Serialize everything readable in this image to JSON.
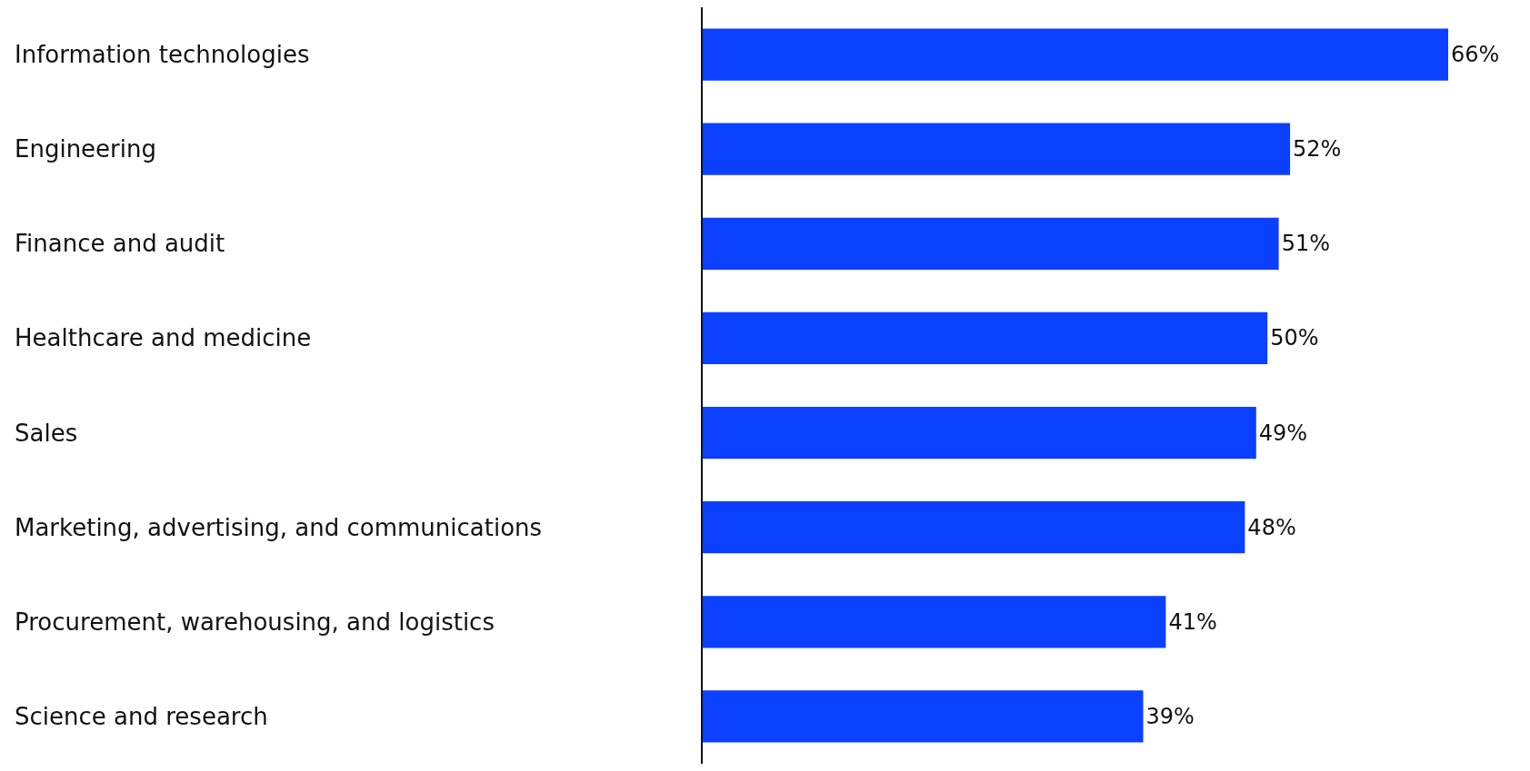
{
  "chart_data": {
    "type": "bar",
    "orientation": "horizontal",
    "categories": [
      "Information technologies",
      "Engineering",
      "Finance and audit",
      "Healthcare and medicine",
      "Sales",
      "Marketing, advertising, and communications",
      "Procurement, warehousing, and logistics",
      "Science and research"
    ],
    "values": [
      66,
      52,
      51,
      50,
      49,
      48,
      41,
      39
    ],
    "value_labels": [
      "66%",
      "52%",
      "51%",
      "50%",
      "49%",
      "48%",
      "41%",
      "39%"
    ],
    "color": "#0c40ff",
    "legend": false
  }
}
